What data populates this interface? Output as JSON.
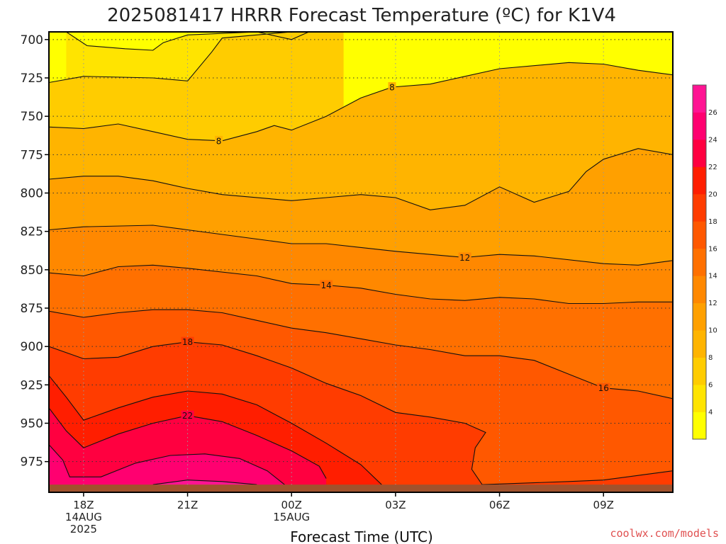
{
  "chart_data": {
    "type": "heatmap",
    "title": "2025081417 HRRR Forecast Temperature (ºC) for K1V4",
    "xlabel": "Forecast Time (UTC)",
    "credit": "coolwx.com/models",
    "x_ticks": [
      {
        "hour": 1,
        "lines": [
          "18Z",
          "14AUG",
          "2025"
        ]
      },
      {
        "hour": 4,
        "lines": [
          "21Z"
        ]
      },
      {
        "hour": 7,
        "lines": [
          "00Z",
          "15AUG"
        ]
      },
      {
        "hour": 10,
        "lines": [
          "03Z"
        ]
      },
      {
        "hour": 13,
        "lines": [
          "06Z"
        ]
      },
      {
        "hour": 16,
        "lines": [
          "09Z"
        ]
      }
    ],
    "x_range": [
      0,
      18
    ],
    "y_ticks": [
      700,
      725,
      750,
      775,
      800,
      825,
      850,
      875,
      900,
      925,
      950,
      975
    ],
    "y_range": [
      695,
      995
    ],
    "y_axis": "pressure (hPa), increasing downward",
    "ground_pressure_hpa": 990,
    "colorbar": {
      "levels": [
        2,
        4,
        6,
        8,
        10,
        12,
        14,
        16,
        18,
        20,
        22,
        24,
        26,
        28
      ],
      "tick_labels": [
        "4",
        "6",
        "8",
        "10",
        "12",
        "14",
        "16",
        "18",
        "20",
        "22",
        "24",
        "26"
      ],
      "colors": [
        "#ffff00",
        "#ffe400",
        "#ffcc00",
        "#ffb400",
        "#ffa000",
        "#ff8800",
        "#ff7000",
        "#ff5800",
        "#ff3c00",
        "#ff1e00",
        "#ff0040",
        "#ff0070",
        "#ff1493"
      ]
    },
    "contour_labels": [
      {
        "value": "8",
        "hour": 4.9,
        "p": 766
      },
      {
        "value": "8",
        "hour": 9.9,
        "p": 731
      },
      {
        "value": "12",
        "hour": 12.0,
        "p": 842
      },
      {
        "value": "14",
        "hour": 8.0,
        "p": 860
      },
      {
        "value": "16",
        "hour": 16.0,
        "p": 927
      },
      {
        "value": "18",
        "hour": 4.0,
        "p": 897
      },
      {
        "value": "22",
        "hour": 4.0,
        "p": 945
      }
    ],
    "isotherms": [
      {
        "value": 4,
        "points": [
          [
            0.5,
            695
          ],
          [
            1.1,
            704
          ],
          [
            2.2,
            706
          ],
          [
            3.0,
            707
          ],
          [
            3.3,
            702
          ],
          [
            4.0,
            697
          ],
          [
            6.0,
            695
          ],
          [
            7.0,
            700
          ],
          [
            7.5,
            695
          ]
        ]
      },
      {
        "value": 6,
        "points": [
          [
            0,
            728
          ],
          [
            1.0,
            724
          ],
          [
            3.0,
            725
          ],
          [
            4.0,
            727
          ],
          [
            4.7,
            708
          ],
          [
            5.0,
            699
          ],
          [
            6.0,
            697
          ],
          [
            7.0,
            695
          ],
          [
            8.5,
            695
          ]
        ]
      },
      {
        "value": 8,
        "points": [
          [
            0,
            757
          ],
          [
            1.0,
            758
          ],
          [
            2.0,
            755
          ],
          [
            3.0,
            760
          ],
          [
            4.0,
            765
          ],
          [
            5.0,
            766
          ],
          [
            6.0,
            760
          ],
          [
            6.5,
            756
          ],
          [
            7.0,
            759
          ],
          [
            8.0,
            750
          ],
          [
            9.0,
            738
          ],
          [
            9.9,
            731
          ],
          [
            11.0,
            729
          ],
          [
            12.0,
            724
          ],
          [
            13.0,
            719
          ],
          [
            15.0,
            715
          ],
          [
            16.0,
            716
          ],
          [
            17.0,
            720
          ],
          [
            18.0,
            723
          ]
        ]
      },
      {
        "value": 10,
        "points": [
          [
            0,
            791
          ],
          [
            1.0,
            789
          ],
          [
            2.0,
            789
          ],
          [
            3.0,
            792
          ],
          [
            4.0,
            797
          ],
          [
            5.0,
            801
          ],
          [
            7.0,
            805
          ],
          [
            8.0,
            803
          ],
          [
            9.0,
            801
          ],
          [
            10.0,
            803
          ],
          [
            11.0,
            811
          ],
          [
            12.0,
            808
          ],
          [
            13.0,
            796
          ],
          [
            14.0,
            806
          ],
          [
            15.0,
            799
          ],
          [
            15.5,
            786
          ],
          [
            16.0,
            778
          ],
          [
            17.0,
            771
          ],
          [
            18.0,
            775
          ]
        ]
      },
      {
        "value": 12,
        "points": [
          [
            0,
            824
          ],
          [
            1.0,
            822
          ],
          [
            3.0,
            821
          ],
          [
            4.0,
            824
          ],
          [
            6.0,
            830
          ],
          [
            7.0,
            833
          ],
          [
            8.0,
            833
          ],
          [
            10.0,
            838
          ],
          [
            11.0,
            840
          ],
          [
            12.0,
            842
          ],
          [
            13.0,
            840
          ],
          [
            14.0,
            841
          ],
          [
            16.0,
            846
          ],
          [
            17.0,
            847
          ],
          [
            18.0,
            844
          ]
        ]
      },
      {
        "value": 14,
        "points": [
          [
            0,
            852
          ],
          [
            1.0,
            854
          ],
          [
            2.0,
            848
          ],
          [
            3.0,
            847
          ],
          [
            4.0,
            849
          ],
          [
            6.0,
            854
          ],
          [
            7.0,
            859
          ],
          [
            8.0,
            860
          ],
          [
            9.0,
            862
          ],
          [
            10.0,
            866
          ],
          [
            11.0,
            869
          ],
          [
            12.0,
            870
          ],
          [
            13.0,
            868
          ],
          [
            14.0,
            869
          ],
          [
            15.0,
            872
          ],
          [
            16.0,
            872
          ],
          [
            17.0,
            871
          ],
          [
            18.0,
            871
          ]
        ]
      },
      {
        "value": 16,
        "points": [
          [
            0,
            877
          ],
          [
            1.0,
            881
          ],
          [
            2.0,
            878
          ],
          [
            3.0,
            876
          ],
          [
            4.0,
            876
          ],
          [
            5.0,
            878
          ],
          [
            6.0,
            883
          ],
          [
            7.0,
            888
          ],
          [
            8.0,
            891
          ],
          [
            9.0,
            895
          ],
          [
            10.0,
            899
          ],
          [
            11.0,
            902
          ],
          [
            12.0,
            906
          ],
          [
            13.0,
            906
          ],
          [
            14.0,
            909
          ],
          [
            15.0,
            918
          ],
          [
            16.0,
            927
          ],
          [
            17.0,
            929
          ],
          [
            18.0,
            934
          ]
        ]
      },
      {
        "value": 18,
        "points": [
          [
            0,
            900
          ],
          [
            1.0,
            908
          ],
          [
            2.0,
            907
          ],
          [
            3.0,
            900
          ],
          [
            4.0,
            897
          ],
          [
            5.0,
            899
          ],
          [
            6.0,
            906
          ],
          [
            7.0,
            914
          ],
          [
            8.0,
            924
          ],
          [
            9.0,
            932
          ],
          [
            10.0,
            943
          ],
          [
            11.0,
            946
          ],
          [
            12.0,
            950
          ],
          [
            12.6,
            956
          ],
          [
            12.3,
            966
          ],
          [
            12.2,
            980
          ],
          [
            12.5,
            990
          ],
          [
            15.0,
            988
          ],
          [
            16.0,
            987
          ],
          [
            17.0,
            984
          ],
          [
            18.0,
            981
          ]
        ]
      },
      {
        "value": 20,
        "points": [
          [
            0,
            919
          ],
          [
            0.5,
            933
          ],
          [
            1.0,
            948
          ],
          [
            2.0,
            940
          ],
          [
            3.0,
            933
          ],
          [
            4.0,
            929
          ],
          [
            5.0,
            931
          ],
          [
            6.0,
            938
          ],
          [
            7.0,
            950
          ],
          [
            8.0,
            963
          ],
          [
            9.0,
            977
          ],
          [
            9.6,
            990
          ]
        ]
      },
      {
        "value": 22,
        "points": [
          [
            0,
            940
          ],
          [
            0.5,
            955
          ],
          [
            1.0,
            966
          ],
          [
            2.0,
            957
          ],
          [
            3.0,
            950
          ],
          [
            4.0,
            945
          ],
          [
            5.0,
            949
          ],
          [
            6.0,
            958
          ],
          [
            7.0,
            968
          ],
          [
            7.8,
            978
          ],
          [
            8.0,
            986
          ]
        ]
      },
      {
        "value": 24,
        "points": [
          [
            0,
            964
          ],
          [
            0.4,
            974
          ],
          [
            0.6,
            985
          ],
          [
            1.5,
            985
          ],
          [
            2.5,
            976
          ],
          [
            3.5,
            971
          ],
          [
            4.5,
            970
          ],
          [
            5.5,
            973
          ],
          [
            6.3,
            981
          ],
          [
            6.8,
            990
          ]
        ]
      },
      {
        "value": 26,
        "points": [
          [
            3.0,
            990
          ],
          [
            4.0,
            987
          ],
          [
            5.0,
            988
          ],
          [
            6.0,
            990
          ]
        ]
      }
    ]
  }
}
